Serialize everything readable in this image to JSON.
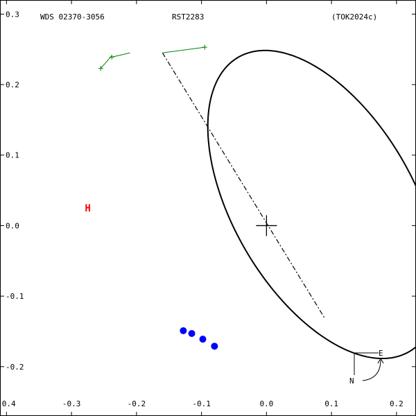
{
  "header": {
    "left": "WDS 02370-3056",
    "center": "RST2283",
    "right": "(TOK2024c)"
  },
  "compass": {
    "east_label": "E",
    "north_label": "N"
  },
  "colors": {
    "orbit": "#000000",
    "residual": "#008000",
    "measure": "#0000ff",
    "periastron_marker": "#ff0000",
    "frame": "#000000",
    "background": "#ffffff"
  },
  "chart_data": {
    "type": "scatter",
    "title": "",
    "xlabel": "",
    "ylabel": "",
    "xlim": [
      -0.41,
      0.23
    ],
    "ylim": [
      -0.27,
      0.32
    ],
    "x_ticks": [
      {
        "value": -0.4,
        "label": "-0.4"
      },
      {
        "value": -0.3,
        "label": "-0.3"
      },
      {
        "value": -0.2,
        "label": "-0.2"
      },
      {
        "value": -0.1,
        "label": "-0.1"
      },
      {
        "value": 0.0,
        "label": "0.0"
      },
      {
        "value": 0.1,
        "label": "0.1"
      },
      {
        "value": 0.2,
        "label": "0.2"
      }
    ],
    "y_ticks": [
      {
        "value": 0.3,
        "label": "0.3"
      },
      {
        "value": 0.2,
        "label": "0.2"
      },
      {
        "value": 0.1,
        "label": "0.1"
      },
      {
        "value": 0.0,
        "label": "0.0"
      },
      {
        "value": -0.1,
        "label": "-0.1"
      },
      {
        "value": -0.2,
        "label": "-0.2"
      }
    ],
    "grid": false,
    "primary_star": {
      "x": 0.0,
      "y": 0.0
    },
    "orbit_ellipse": {
      "center": {
        "x": -0.088,
        "y": 0.03
      },
      "semi_major": 0.247,
      "semi_minor": 0.136,
      "angle_deg": 56.0
    },
    "line_of_nodes": {
      "from": {
        "x": -0.16,
        "y": 0.245
      },
      "to": {
        "x": 0.09,
        "y": -0.132
      }
    },
    "periastron_marker": {
      "label": "H",
      "x": -0.275,
      "y": 0.025
    },
    "measurements": [
      {
        "x": -0.128,
        "y": -0.149
      },
      {
        "x": -0.115,
        "y": -0.153
      },
      {
        "x": -0.098,
        "y": -0.161
      },
      {
        "x": -0.08,
        "y": -0.171
      }
    ],
    "residual_points": [
      {
        "obs": {
          "x": -0.255,
          "y": 0.223
        },
        "pred": {
          "x": -0.238,
          "y": 0.241
        }
      },
      {
        "obs": {
          "x": -0.238,
          "y": 0.239
        },
        "pred": {
          "x": -0.21,
          "y": 0.245
        }
      },
      {
        "obs": {
          "x": -0.095,
          "y": 0.253
        },
        "pred": {
          "x": -0.16,
          "y": 0.245
        }
      }
    ]
  }
}
